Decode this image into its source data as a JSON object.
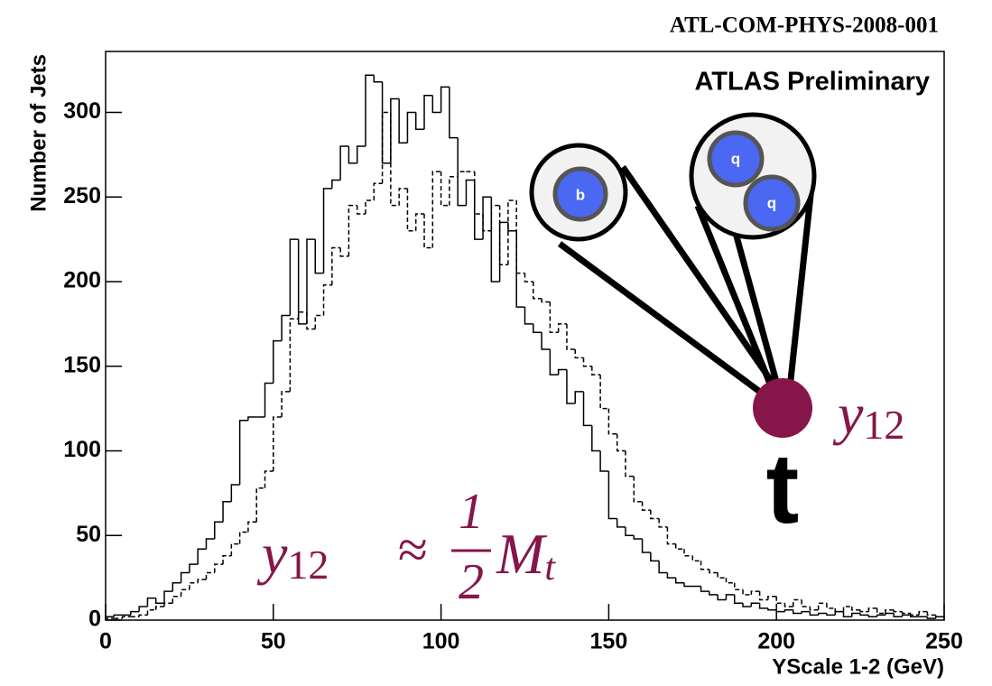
{
  "chart_data": {
    "type": "histogram",
    "header": "ATL-COM-PHYS-2008-001",
    "title": "ATLAS Preliminary",
    "x_label": "YScale 1-2 (GeV)",
    "y_label": "Number of Jets",
    "xlim": [
      0,
      250
    ],
    "ylim": [
      0,
      336
    ],
    "xticks": [
      0,
      50,
      100,
      150,
      200,
      250
    ],
    "yticks": [
      0,
      50,
      100,
      150,
      200,
      250,
      300
    ],
    "bins": [
      0,
      2.5,
      5,
      7.5,
      10,
      12.5,
      15,
      17.5,
      20,
      22.5,
      25,
      27.5,
      30,
      32.5,
      35,
      37.5,
      40,
      42.5,
      45,
      47.5,
      50,
      52.5,
      55,
      57.5,
      60,
      62.5,
      65,
      67.5,
      70,
      72.5,
      75,
      77.5,
      80,
      82.5,
      85,
      87.5,
      90,
      92.5,
      95,
      97.5,
      100,
      102.5,
      105,
      107.5,
      110,
      112.5,
      115,
      117.5,
      120,
      122.5,
      125,
      127.5,
      130,
      132.5,
      135,
      137.5,
      140,
      142.5,
      145,
      147.5,
      150,
      152.5,
      155,
      157.5,
      160,
      162.5,
      165,
      167.5,
      170,
      172.5,
      175,
      177.5,
      180,
      182.5,
      185,
      187.5,
      190,
      192.5,
      195,
      197.5,
      200,
      202.5,
      205,
      207.5,
      210,
      212.5,
      215,
      217.5,
      220,
      222.5,
      225,
      227.5,
      230,
      232.5,
      235,
      237.5,
      240,
      242.5,
      245,
      247.5,
      250
    ],
    "series": [
      {
        "color": "#000000",
        "dash": "solid",
        "values": [
          2,
          3,
          3,
          5,
          8,
          13,
          10,
          17,
          22,
          28,
          33,
          42,
          48,
          58,
          70,
          80,
          118,
          120,
          120,
          140,
          165,
          180,
          225,
          175,
          225,
          205,
          255,
          260,
          280,
          270,
          280,
          322,
          318,
          270,
          308,
          282,
          300,
          290,
          310,
          300,
          315,
          285,
          245,
          260,
          225,
          250,
          200,
          235,
          230,
          185,
          175,
          170,
          160,
          145,
          148,
          128,
          135,
          115,
          100,
          88,
          60,
          55,
          50,
          48,
          40,
          35,
          28,
          25,
          22,
          20,
          20,
          17,
          15,
          12,
          15,
          10,
          8,
          10,
          7,
          6,
          5,
          6,
          4,
          5,
          3,
          4,
          3,
          5,
          2,
          4,
          3,
          2,
          3,
          4,
          2,
          3,
          2,
          2,
          1,
          2
        ]
      },
      {
        "color": "#000000",
        "dash": "dashed",
        "values": [
          1,
          1,
          2,
          2,
          3,
          6,
          8,
          10,
          14,
          18,
          22,
          24,
          28,
          33,
          38,
          45,
          52,
          58,
          78,
          88,
          120,
          135,
          178,
          182,
          172,
          180,
          198,
          220,
          215,
          245,
          240,
          248,
          258,
          300,
          245,
          255,
          230,
          240,
          220,
          265,
          245,
          262,
          265,
          265,
          240,
          230,
          245,
          210,
          248,
          205,
          200,
          190,
          188,
          170,
          175,
          160,
          155,
          150,
          145,
          125,
          110,
          100,
          85,
          70,
          65,
          60,
          55,
          45,
          42,
          38,
          35,
          30,
          28,
          25,
          22,
          18,
          15,
          17,
          12,
          14,
          10,
          8,
          12,
          8,
          6,
          10,
          7,
          5,
          8,
          6,
          5,
          7,
          4,
          6,
          5,
          4,
          3,
          5,
          3,
          2
        ]
      }
    ],
    "diagram": {
      "b": "b",
      "q1": "q",
      "q2": "q",
      "top": "t",
      "symbol": {
        "base": "y",
        "sub": "12"
      },
      "formula": {
        "lhs": "y",
        "lhs_sub": "12",
        "rel": "≈",
        "num": "1",
        "den": "2",
        "rhs": "M",
        "rhs_sub": "t"
      }
    }
  }
}
